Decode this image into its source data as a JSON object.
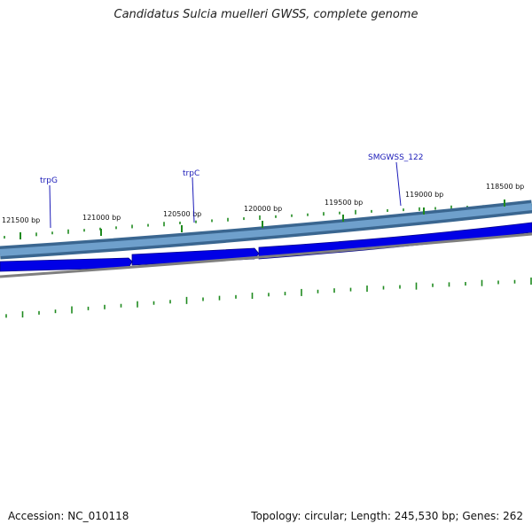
{
  "title": "Candidatus Sulcia muelleri GWSS, complete genome",
  "footer": {
    "accession": "Accession: NC_010118",
    "summary": "Topology: circular; Length: 245,530 bp; Genes: 262"
  },
  "position_labels": [
    "121500 bp",
    "121000 bp",
    "120500 bp",
    "120000 bp",
    "119500 bp",
    "119000 bp",
    "118500 bp"
  ],
  "gene_labels": [
    "trpG",
    "trpC",
    "SMGWSS_122"
  ],
  "colors": {
    "backbone": "#4a7ba8",
    "gene_forward": "#0000e6",
    "genome_line": "#7f7f7f",
    "gc_marks": "#1f8a1f",
    "label_leader": "#1a1ab8"
  }
}
